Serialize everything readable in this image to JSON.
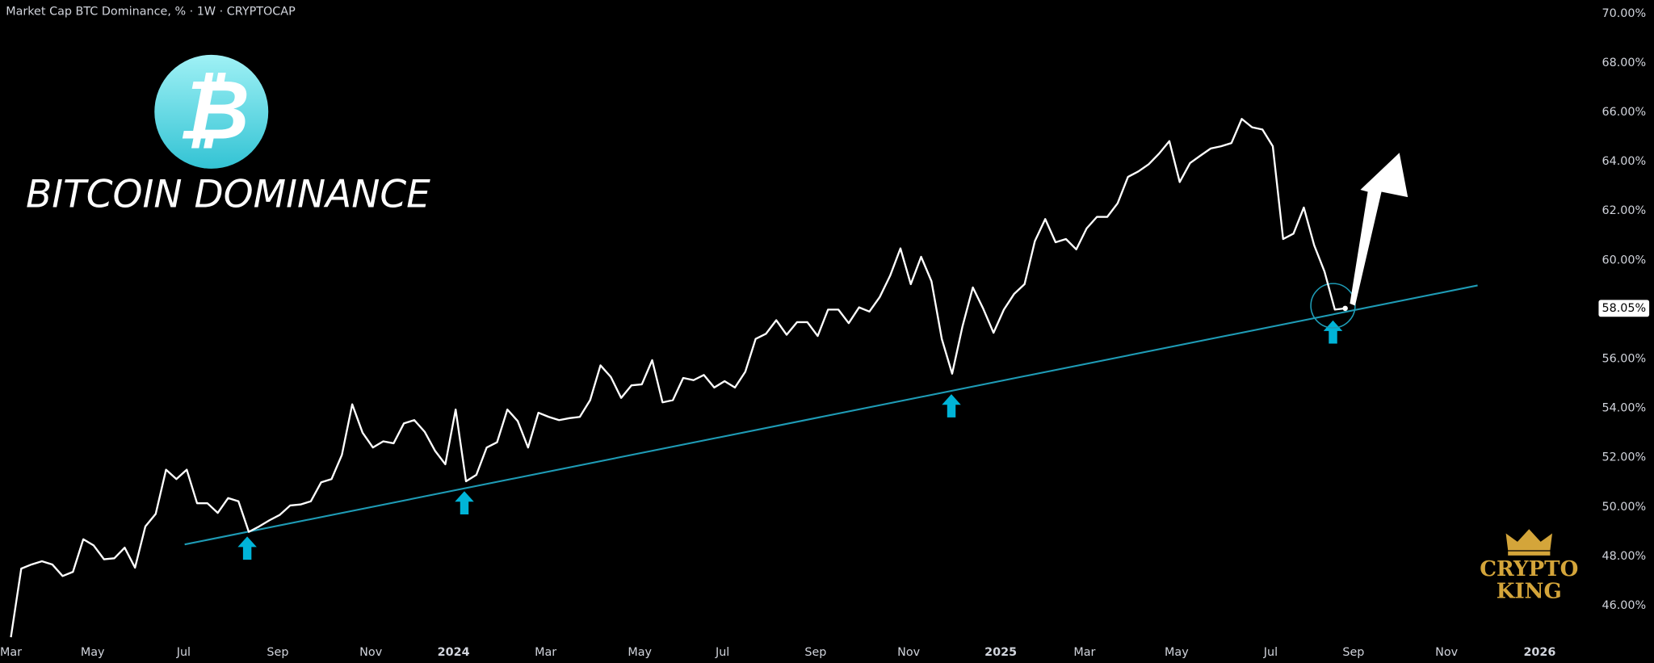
{
  "chart_data": {
    "type": "line",
    "title": "Market Cap BTC Dominance, % · 1W · CRYPTOCAP",
    "overlay_title": "BITCOIN DOMINANCE",
    "logo_symbol": "₿",
    "watermark": [
      "CRYPTO",
      "KING"
    ],
    "last_label": "58.05%",
    "color": "#ffffff",
    "grid": false,
    "values": [
      44.72,
      47.5,
      47.67,
      47.8,
      47.67,
      47.2,
      47.37,
      48.69,
      48.44,
      47.88,
      47.92,
      48.35,
      47.54,
      49.21,
      49.72,
      51.51,
      51.13,
      51.51,
      50.15,
      50.15,
      49.76,
      50.36,
      50.23,
      48.99,
      49.21,
      49.46,
      49.68,
      50.06,
      50.1,
      50.23,
      51.0,
      51.13,
      52.11,
      54.16,
      53.01,
      52.41,
      52.66,
      52.58,
      53.39,
      53.52,
      53.05,
      52.28,
      51.73,
      53.95,
      51.04,
      51.3,
      52.41,
      52.62,
      53.95,
      53.48,
      52.41,
      53.82,
      53.65,
      53.52,
      53.6,
      53.65,
      54.33,
      55.74,
      55.27,
      54.42,
      54.93,
      54.97,
      55.95,
      54.24,
      54.33,
      55.23,
      55.14,
      55.35,
      54.84,
      55.1,
      54.84,
      55.48,
      56.81,
      57.02,
      57.57,
      56.98,
      57.49,
      57.49,
      56.93,
      58.0,
      58.0,
      57.45,
      58.09,
      57.92,
      58.51,
      59.37,
      60.48,
      59.03,
      60.14,
      59.15,
      56.81,
      55.4,
      57.32,
      58.9,
      58.04,
      57.06,
      58.0,
      58.64,
      59.03,
      60.78,
      61.67,
      60.73,
      60.86,
      60.44,
      61.29,
      61.76,
      61.76,
      62.31,
      63.38,
      63.6,
      63.89,
      64.32,
      64.83,
      63.17,
      63.94,
      64.24,
      64.53,
      64.62,
      64.75,
      65.73,
      65.39,
      65.3,
      64.62,
      60.86,
      61.08,
      62.14,
      60.61,
      59.54,
      58.0,
      58.05
    ],
    "trend_line": {
      "color": "#1e9bb5",
      "x": [
        16.8,
        141.8
      ],
      "values": [
        48.48,
        58.98
      ]
    },
    "xlim": [
      -1,
      153.4
    ],
    "xticks": [
      {
        "value": 0,
        "label": "Mar"
      },
      {
        "value": 7.9,
        "label": "May"
      },
      {
        "value": 16.7,
        "label": "Jul"
      },
      {
        "value": 25.8,
        "label": "Sep"
      },
      {
        "value": 34.8,
        "label": "Nov"
      },
      {
        "value": 42.8,
        "label": "2024"
      },
      {
        "value": 51.7,
        "label": "Mar"
      },
      {
        "value": 60.8,
        "label": "May"
      },
      {
        "value": 68.8,
        "label": "Jul"
      },
      {
        "value": 77.8,
        "label": "Sep"
      },
      {
        "value": 86.8,
        "label": "Nov"
      },
      {
        "value": 95.7,
        "label": "2025"
      },
      {
        "value": 103.8,
        "label": "Mar"
      },
      {
        "value": 112.7,
        "label": "May"
      },
      {
        "value": 121.8,
        "label": "Jul"
      },
      {
        "value": 129.8,
        "label": "Sep"
      },
      {
        "value": 138.8,
        "label": "Nov"
      },
      {
        "value": 147.8,
        "label": "2026"
      }
    ],
    "ylim": [
      44.7,
      70.55
    ],
    "yticks": [
      {
        "value": 46,
        "label": "46.00%"
      },
      {
        "value": 48,
        "label": "48.00%"
      },
      {
        "value": 50,
        "label": "50.00%"
      },
      {
        "value": 52,
        "label": "52.00%"
      },
      {
        "value": 54,
        "label": "54.00%"
      },
      {
        "value": 56,
        "label": "56.00%"
      },
      {
        "value": 58,
        "label": "58.00%"
      },
      {
        "value": 60,
        "label": "60.00%"
      },
      {
        "value": 62,
        "label": "62.00%"
      },
      {
        "value": 64,
        "label": "64.00%"
      },
      {
        "value": 66,
        "label": "66.00%"
      },
      {
        "value": 68,
        "label": "68.00%"
      },
      {
        "value": 70,
        "label": "70.00%"
      }
    ]
  }
}
